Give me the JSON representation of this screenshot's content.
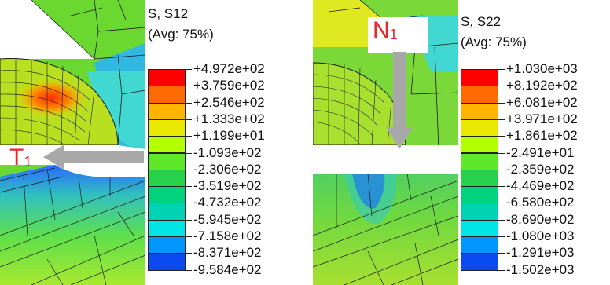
{
  "panels": {
    "left": {
      "legend": {
        "title_line1": "S, S12",
        "title_line2": "(Avg: 75%)",
        "values": [
          "+4.972e+02",
          "+3.759e+02",
          "+2.546e+02",
          "+1.333e+02",
          "+1.199e+01",
          "-1.093e+02",
          "-2.306e+02",
          "-3.519e+02",
          "-4.732e+02",
          "-5.945e+02",
          "-7.158e+02",
          "-8.371e+02",
          "-9.584e+02"
        ]
      },
      "load": {
        "label": "T",
        "subscript": "1",
        "direction": "left"
      }
    },
    "right": {
      "legend": {
        "title_line1": "S, S22",
        "title_line2": "(Avg: 75%)",
        "values": [
          "+1.030e+03",
          "+8.192e+02",
          "+6.081e+02",
          "+3.971e+02",
          "+1.861e+02",
          "-2.491e+01",
          "-2.359e+02",
          "-4.469e+02",
          "-6.580e+02",
          "-8.690e+02",
          "-1.080e+03",
          "-1.291e+03",
          "-1.502e+03"
        ]
      },
      "load": {
        "label": "N",
        "subscript": "1",
        "direction": "down"
      }
    }
  },
  "colormap": [
    "#ff0000",
    "#ff6a00",
    "#ffb400",
    "#e8e800",
    "#b4ff00",
    "#5fe82a",
    "#26d24a",
    "#00d27e",
    "#00d2b4",
    "#00e6e6",
    "#0096ff",
    "#0a4af0",
    "#0000ff"
  ],
  "colors": {
    "load_arrow": "#a8a8a8",
    "load_label": "#e8262a",
    "mesh_line": "#1a1a1a"
  }
}
